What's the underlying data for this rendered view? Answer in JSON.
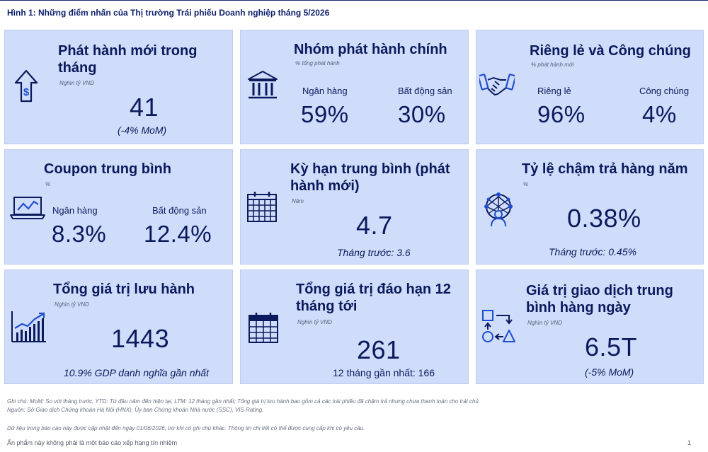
{
  "page_title": "Hình 1: Những điểm nhấn của Thị trường Trái phiếu Doanh nghiệp tháng 5/2026",
  "cards": {
    "new_issuance": {
      "title_1": "Phát hành mới trong",
      "title_2": "tháng",
      "unit": "Nghìn tỷ VND",
      "value": "41",
      "sub": "(-4% MoM)",
      "icon": "dollar-arrow-up-icon"
    },
    "main_issuers": {
      "title": "Nhóm phát hành chính",
      "unit": "% tổng phát hành",
      "left_label": "Ngân hàng",
      "left_value": "59%",
      "right_label": "Bất động sản",
      "right_value": "30%",
      "icon": "bank-icon"
    },
    "private_public": {
      "title": "Riêng lẻ và Công chúng",
      "unit": "% phát hành mới",
      "left_label": "Riêng lẻ",
      "left_value": "96%",
      "right_label": "Công chúng",
      "right_value": "4%",
      "icon": "handshake-icon"
    },
    "avg_coupon": {
      "title": "Coupon trung bình",
      "unit": "%",
      "left_label": "Ngân hàng",
      "left_value": "8.3%",
      "right_label": "Bất động sản",
      "right_value": "12.4%",
      "icon": "laptop-chart-icon"
    },
    "avg_tenor": {
      "title_1": "Kỳ hạn trung bình (phát",
      "title_2": "hành mới)",
      "unit": "Năm",
      "value": "4.7",
      "sub": "Tháng trước: 3.6",
      "icon": "calendar-icon"
    },
    "default_rate": {
      "title": "Tỷ lệ chậm trả hàng năm",
      "unit": "%",
      "value": "0.38%",
      "sub": "Tháng trước: 0.45%",
      "icon": "network-user-icon"
    },
    "outstanding": {
      "title": "Tổng giá trị lưu hành",
      "unit": "Nghìn tỷ VND",
      "value": "1443",
      "sub": "10.9% GDP danh nghĩa gần nhất",
      "icon": "growth-chart-icon"
    },
    "maturity": {
      "title_1": "Tổng giá trị đáo hạn 12",
      "title_2": "tháng tới",
      "unit": "Nghìn tỷ VND",
      "value": "261",
      "sub": "12 tháng gần nhất: 166",
      "icon": "calendar-small-icon"
    },
    "daily_trading": {
      "title_1": "Giá trị giao dịch trung",
      "title_2": "bình hàng ngày",
      "unit": "Nghìn tỷ VND",
      "value": "6.5T",
      "sub": "(-5% MoM)",
      "icon": "shapes-flow-icon"
    }
  },
  "footnotes": {
    "note": "Ghi chú:  MoM: So với tháng trước, YTD: Từ đầu năm đến hiện tại, LTM: 12 tháng gần nhất; Tổng giá trị lưu hành bao gồm cả các trái phiếu đã chậm trả nhưng chưa thanh toán cho trái chủ.",
    "source": "Nguồn: Sở Giao dịch Chứng khoán Hà Nội (HNX), Ủy ban Chứng khoán Nhà nước (SSC), VIS Rating.",
    "data_update": "Dữ liệu trong báo cáo này được cập nhật đến ngày 01/06/2026, trừ khi có ghi chú khác. Thông tin chi tiết có thể được cung cấp khi có yêu cầu.",
    "disclaimer": "Ấn phẩm này không phải là một báo cáo xếp hạng tín nhiệm",
    "page_number": "1"
  },
  "colors": {
    "card_bg": "#cfdcfa",
    "text": "#0a1a5c",
    "accent": "#1f4fd1"
  }
}
